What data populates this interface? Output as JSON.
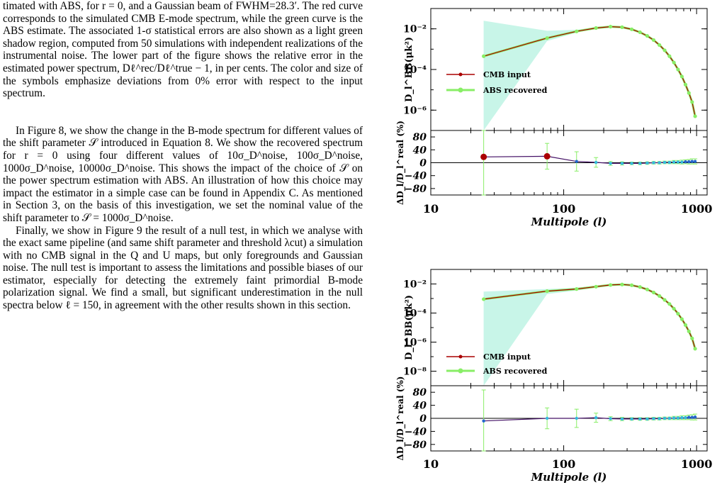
{
  "caption": "timated with ABS, for r = 0, and a Gaussian beam of FWHM=28.3′. The red curve corresponds to the simulated CMB E-mode spectrum, while the green curve is the ABS estimate. The associated 1-σ statistical errors are also shown as a light green shadow region, computed from 50 simulations with independent realizations of the instrumental noise. The lower part of the figure shows the relative error in the estimated power spectrum, Dℓ^rec/Dℓ^true − 1, in per cents. The color and size of the symbols emphasize deviations from 0% error with respect to the input spectrum.",
  "paragraph1": "In Figure 8, we show the change in the B-mode spectrum for different values of the shift parameter 𝒮 introduced in Equation 8. We show the recovered spectrum for r = 0 using four different values of 10σ_D^noise, 100σ_D^noise, 1000σ_D^noise, 10000σ_D^noise. This shows the impact of the choice of 𝒮 on the power spectrum estimation with ABS. An illustration of how this choice may impact the estimator in a simple case can be found in Appendix C. As mentioned in Section 3, on the basis of this investigation, we set the nominal value of the shift parameter to 𝒮 = 1000σ_D^noise.",
  "paragraph2": "Finally, we show in Figure 9 the result of a null test, in which we analyse with the exact same pipeline (and same shift parameter and threshold λcut) a simulation with no CMB signal in the Q and U maps, but only foregrounds and Gaussian noise. The null test is important to assess the limitations and possible biases of our estimator, especially for detecting the extremely faint primordial B-mode polarization signal. We find a small, but significant underestimation in the null spectra below ℓ = 150, in agreement with the other results shown in this section.",
  "figures": [
    {
      "upper_ylabel": "D_l^BB(μk²)",
      "upper_ticks": [
        "10⁻²",
        "10⁻⁴",
        "10⁻⁶"
      ],
      "legend": [
        "CMB input",
        "ABS recovered"
      ],
      "lower_ylabel": "ΔD_l/D_l^real (%)",
      "lower_ticks": [
        "80",
        "40",
        "0",
        "−40",
        "−80"
      ],
      "x_ticks": [
        "10",
        "100",
        "1000"
      ],
      "xlabel": "Multipole (l)"
    },
    {
      "upper_ylabel": "D_l^BB(μk²)",
      "upper_ticks": [
        "10⁻²",
        "10⁻⁴",
        "10⁻⁶",
        "10⁻⁸"
      ],
      "legend": [
        "CMB input",
        "ABS recovered"
      ],
      "lower_ylabel": "ΔD_l/D_l^real (%)",
      "lower_ticks": [
        "80",
        "40",
        "0",
        "−40",
        "−80"
      ],
      "x_ticks": [
        "10",
        "100",
        "1000"
      ],
      "xlabel": "Multipole (l)"
    }
  ],
  "chart_data": [
    {
      "type": "line",
      "xscale": "log",
      "xlim": [
        10,
        1200
      ],
      "yscale": "log",
      "ylim": [
        1e-07,
        0.1
      ],
      "xlabel": "Multipole (l)",
      "ylabel": "D_l^BB(μk²)",
      "legend_position": "left",
      "x": [
        25,
        75,
        125,
        175,
        225,
        275,
        325,
        375,
        425,
        475,
        525,
        575,
        625,
        675,
        725,
        775,
        825,
        875,
        925,
        975
      ],
      "series": [
        {
          "name": "CMB input",
          "color": "#aa0000",
          "values": [
            0.00045,
            0.0035,
            0.0075,
            0.011,
            0.0128,
            0.012,
            0.0095,
            0.0068,
            0.0045,
            0.0028,
            0.0016,
            0.00088,
            0.00045,
            0.00022,
            0.0001,
            4.5e-05,
            1.8e-05,
            7e-06,
            2.5e-06,
            5e-07
          ]
        },
        {
          "name": "ABS recovered",
          "color": "#88ee66",
          "values": [
            0.00045,
            0.0035,
            0.0075,
            0.011,
            0.0128,
            0.012,
            0.0095,
            0.0068,
            0.0045,
            0.0028,
            0.0016,
            0.00088,
            0.00045,
            0.00022,
            0.0001,
            4.5e-05,
            1.8e-05,
            7e-06,
            2.5e-06,
            5e-07
          ]
        }
      ],
      "error_band": {
        "x": [
          25,
          25,
          75,
          125,
          175
        ],
        "upper": [
          0.025,
          0.025,
          0.008,
          0.009,
          0.012
        ],
        "lower": [
          1e-07,
          1e-07,
          0.0025,
          0.0065,
          0.0105
        ]
      },
      "residual": {
        "ylabel": "ΔD_l/D_l^real (%)",
        "ylim": [
          -100,
          100
        ],
        "values": [
          18,
          20,
          4,
          1,
          -2,
          -2,
          -2,
          -2,
          -1,
          0,
          0,
          1,
          1,
          2,
          2,
          2,
          3,
          3,
          4,
          4
        ],
        "errors": [
          150,
          40,
          30,
          15,
          6,
          5,
          4,
          4,
          4,
          4,
          4,
          4,
          4,
          5,
          5,
          6,
          6,
          7,
          8,
          8
        ]
      }
    },
    {
      "type": "line",
      "xscale": "log",
      "xlim": [
        10,
        1200
      ],
      "yscale": "log",
      "ylim": [
        1e-09,
        0.1
      ],
      "xlabel": "Multipole (l)",
      "ylabel": "D_l^BB(μk²)",
      "legend_position": "left",
      "x": [
        25,
        75,
        125,
        175,
        225,
        275,
        325,
        375,
        425,
        475,
        525,
        575,
        625,
        675,
        725,
        775,
        825,
        875,
        925,
        975
      ],
      "series": [
        {
          "name": "CMB input",
          "color": "#aa0000",
          "values": [
            0.0009,
            0.0032,
            0.0045,
            0.0065,
            0.0085,
            0.0092,
            0.0082,
            0.0062,
            0.0042,
            0.0026,
            0.0015,
            0.0008,
            0.00042,
            0.0002,
            9e-05,
            3.8e-05,
            1.5e-05,
            5.5e-06,
            1.8e-06,
            3.5e-07
          ]
        },
        {
          "name": "ABS recovered",
          "color": "#88ee66",
          "values": [
            0.0009,
            0.0032,
            0.0045,
            0.0065,
            0.0085,
            0.0092,
            0.0082,
            0.0062,
            0.0042,
            0.0026,
            0.0015,
            0.0008,
            0.00042,
            0.0002,
            9e-05,
            3.8e-05,
            1.5e-05,
            5.5e-06,
            1.8e-06,
            3.5e-07
          ]
        }
      ],
      "error_band": {
        "x": [
          25,
          25,
          75,
          125,
          175
        ],
        "upper": [
          0.003,
          0.003,
          0.0045,
          0.0055,
          0.0075
        ],
        "lower": [
          1e-09,
          1e-09,
          0.002,
          0.0035,
          0.0055
        ]
      },
      "residual": {
        "ylabel": "ΔD_l/D_l^real (%)",
        "ylim": [
          -100,
          100
        ],
        "values": [
          -8,
          0,
          0,
          2,
          -1,
          -2,
          -2,
          -2,
          -2,
          -1,
          -1,
          0,
          0,
          1,
          1,
          2,
          2,
          3,
          3,
          4
        ],
        "errors": [
          95,
          32,
          28,
          14,
          6,
          5,
          4,
          4,
          4,
          4,
          4,
          4,
          4,
          5,
          5,
          6,
          6,
          7,
          8,
          9
        ]
      }
    }
  ]
}
